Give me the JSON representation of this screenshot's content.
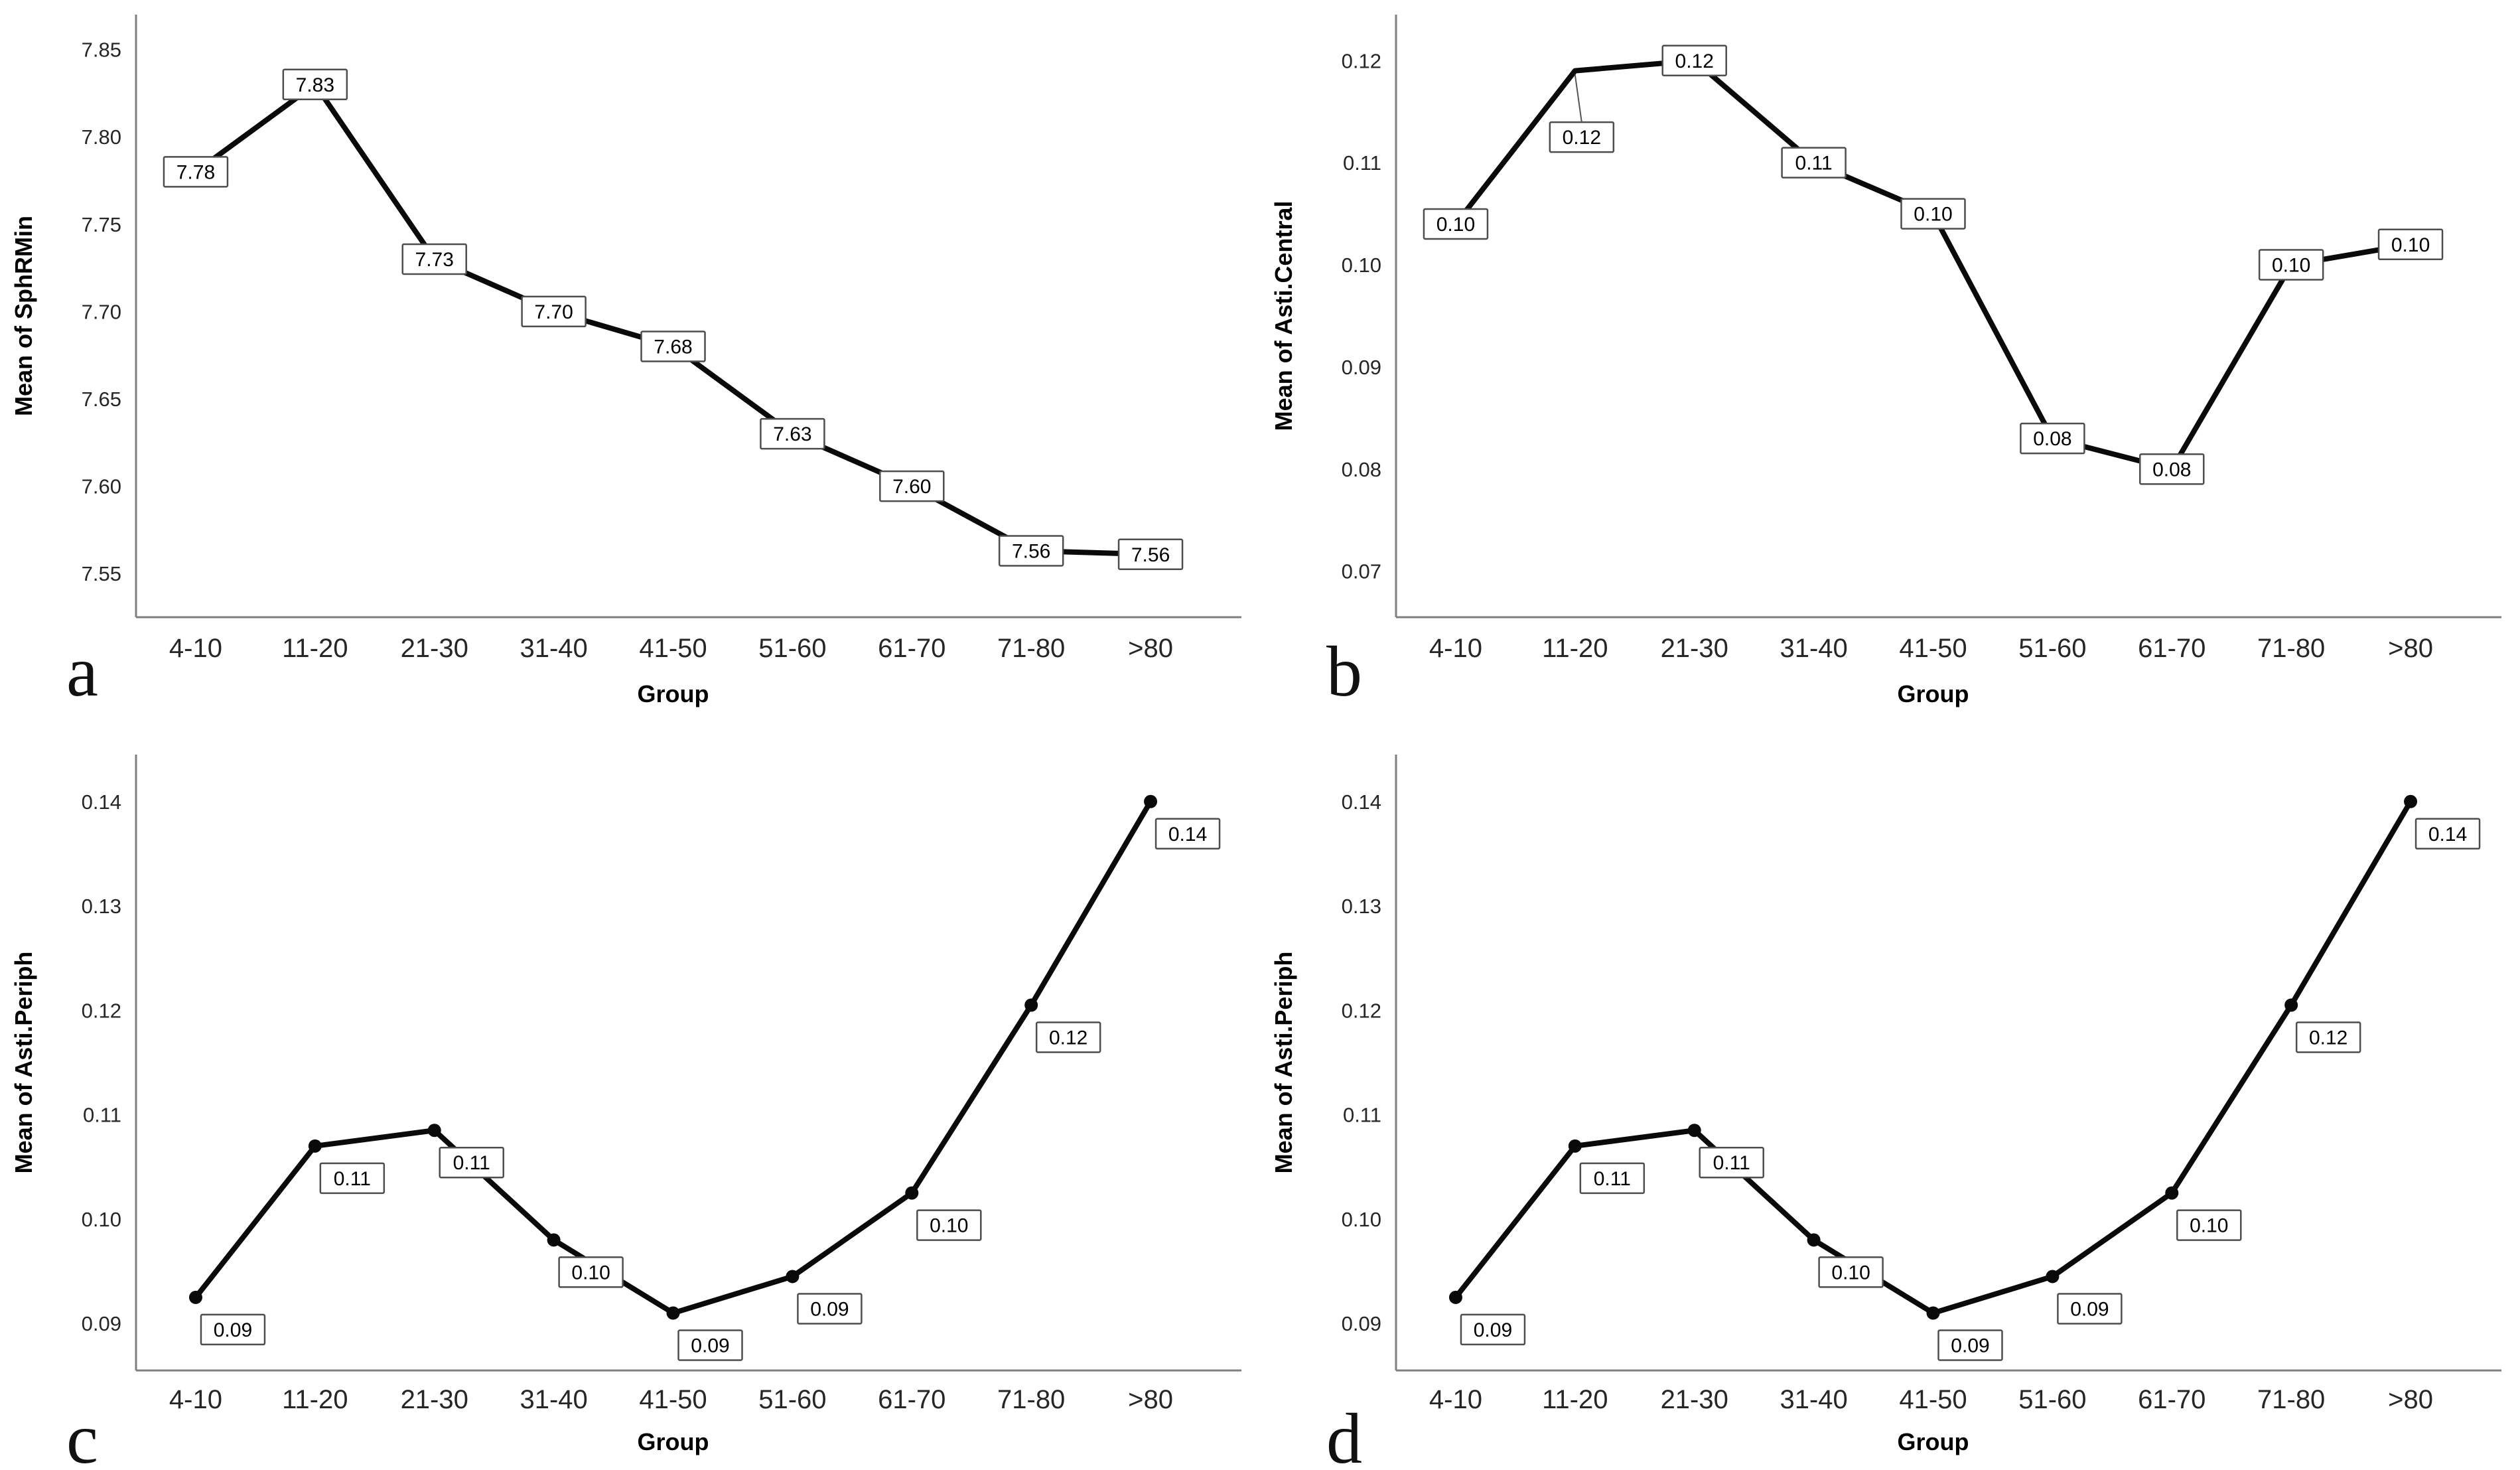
{
  "figure": {
    "background": "#ffffff",
    "line_color": "#0a0a0a",
    "axis_color": "#7f7f7f",
    "label_box_border": "#4d4d4d",
    "label_box_fill": "#ffffff",
    "tick_text_color": "#262626",
    "panels": [
      {
        "letter": "a"
      },
      {
        "letter": "b"
      },
      {
        "letter": "c"
      },
      {
        "letter": "d"
      }
    ]
  },
  "chart_data": [
    {
      "type": "line",
      "panel": "a",
      "title": "",
      "xlabel": "Group",
      "ylabel": "Mean of SphRMin",
      "categories": [
        "4-10",
        "11-20",
        "21-30",
        "31-40",
        "41-50",
        "51-60",
        "61-70",
        "71-80",
        ">80"
      ],
      "values": [
        7.78,
        7.83,
        7.73,
        7.7,
        7.68,
        7.63,
        7.6,
        7.56,
        7.56
      ],
      "point_labels": [
        "7.78",
        "7.83",
        "7.73",
        "7.70",
        "7.68",
        "7.63",
        "7.60",
        "7.56",
        "7.56"
      ],
      "plot_values": [
        7.78,
        7.83,
        7.73,
        7.7,
        7.68,
        7.63,
        7.6,
        7.563,
        7.561
      ],
      "ylim": [
        7.525,
        7.87
      ],
      "yticks": [
        7.85,
        7.8,
        7.75,
        7.7,
        7.65,
        7.6,
        7.55
      ],
      "grid": false,
      "legend": "none",
      "marker": false,
      "label_placement": "on-point",
      "offset_label_indexes": []
    },
    {
      "type": "line",
      "panel": "b",
      "title": "",
      "xlabel": "Group",
      "ylabel": "Mean of Asti.Central",
      "categories": [
        "4-10",
        "11-20",
        "21-30",
        "31-40",
        "41-50",
        "51-60",
        "61-70",
        "71-80",
        ">80"
      ],
      "values": [
        0.1,
        0.12,
        0.12,
        0.11,
        0.1,
        0.08,
        0.08,
        0.1,
        0.1
      ],
      "point_labels": [
        "0.10",
        "0.12",
        "0.12",
        "0.11",
        "0.10",
        "0.08",
        "0.08",
        "0.10",
        "0.10"
      ],
      "plot_values": [
        0.104,
        0.119,
        0.12,
        0.11,
        0.105,
        0.083,
        0.08,
        0.1,
        0.102
      ],
      "ylim": [
        0.0655,
        0.1245
      ],
      "yticks": [
        0.12,
        0.11,
        0.1,
        0.09,
        0.08,
        0.07
      ],
      "grid": false,
      "legend": "none",
      "marker": false,
      "label_placement": "on-point",
      "offset_label_indexes": [
        1
      ]
    },
    {
      "type": "line",
      "panel": "c",
      "title": "",
      "xlabel": "Group",
      "ylabel": "Mean of Asti.Periph",
      "categories": [
        "4-10",
        "11-20",
        "21-30",
        "31-40",
        "41-50",
        "51-60",
        "61-70",
        "71-80",
        ">80"
      ],
      "values": [
        0.09,
        0.11,
        0.11,
        0.1,
        0.09,
        0.09,
        0.1,
        0.12,
        0.14
      ],
      "point_labels": [
        "0.09",
        "0.11",
        "0.11",
        "0.10",
        "0.09",
        "0.09",
        "0.10",
        "0.12",
        "0.14"
      ],
      "plot_values": [
        0.0925,
        0.107,
        0.1085,
        0.098,
        0.091,
        0.0945,
        0.1025,
        0.1205,
        0.14
      ],
      "ylim": [
        0.0855,
        0.1445
      ],
      "yticks": [
        0.14,
        0.13,
        0.12,
        0.11,
        0.1,
        0.09
      ],
      "grid": false,
      "legend": "none",
      "marker": true,
      "label_placement": "below-right",
      "offset_label_indexes": []
    },
    {
      "type": "line",
      "panel": "d",
      "title": "",
      "xlabel": "Group",
      "ylabel": "Mean of Asti.Periph",
      "categories": [
        "4-10",
        "11-20",
        "21-30",
        "31-40",
        "41-50",
        "51-60",
        "61-70",
        "71-80",
        ">80"
      ],
      "values": [
        0.09,
        0.11,
        0.11,
        0.1,
        0.09,
        0.09,
        0.1,
        0.12,
        0.14
      ],
      "point_labels": [
        "0.09",
        "0.11",
        "0.11",
        "0.10",
        "0.09",
        "0.09",
        "0.10",
        "0.12",
        "0.14"
      ],
      "plot_values": [
        0.0925,
        0.107,
        0.1085,
        0.098,
        0.091,
        0.0945,
        0.1025,
        0.1205,
        0.14
      ],
      "ylim": [
        0.0855,
        0.1445
      ],
      "yticks": [
        0.14,
        0.13,
        0.12,
        0.11,
        0.1,
        0.09
      ],
      "grid": false,
      "legend": "none",
      "marker": true,
      "label_placement": "below-right",
      "offset_label_indexes": []
    }
  ]
}
